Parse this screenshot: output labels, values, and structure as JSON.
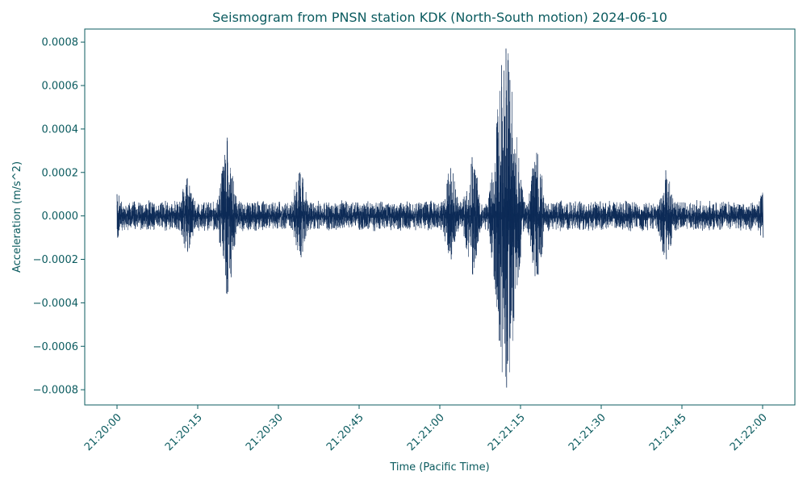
{
  "colors": {
    "axis": "#0b5b5f",
    "trace": "#0d2b57",
    "background": "#ffffff"
  },
  "chart_data": {
    "type": "line",
    "title": "Seismogram from PNSN station KDK (North-South motion) 2024-06-10",
    "xlabel": "Time (Pacific Time)",
    "ylabel": "Acceleration (m/s^2)",
    "x_range": [
      "21:20:00",
      "21:22:00"
    ],
    "xlim": [
      "21:19:54",
      "21:22:06"
    ],
    "ylim": [
      -0.00087,
      0.00086
    ],
    "x_ticks": [
      "21:20:00",
      "21:20:15",
      "21:20:30",
      "21:20:45",
      "21:21:00",
      "21:21:15",
      "21:21:30",
      "21:21:45",
      "21:22:00"
    ],
    "y_ticks": [
      {
        "value": 0.0008,
        "label": "0.0008"
      },
      {
        "value": 0.0006,
        "label": "0.0006"
      },
      {
        "value": 0.0004,
        "label": "0.0004"
      },
      {
        "value": 0.0002,
        "label": "0.0002"
      },
      {
        "value": 0.0,
        "label": "0.0000"
      },
      {
        "value": -0.0002,
        "label": "−0.0002"
      },
      {
        "value": -0.0004,
        "label": "−0.0004"
      },
      {
        "value": -0.0006,
        "label": "−0.0006"
      },
      {
        "value": -0.0008,
        "label": "−0.0008"
      }
    ],
    "grid": false,
    "envelope_peaks": [
      {
        "t": "21:20:00",
        "max": 0.0001,
        "min": -0.0001
      },
      {
        "t": "21:20:13",
        "max": 0.00017,
        "min": -0.00016
      },
      {
        "t": "21:20:20.5",
        "max": 0.00036,
        "min": -0.00035
      },
      {
        "t": "21:20:34",
        "max": 0.0002,
        "min": -0.00018
      },
      {
        "t": "21:21:02",
        "max": 0.00022,
        "min": -0.0002
      },
      {
        "t": "21:21:06",
        "max": 0.00027,
        "min": -0.00027
      },
      {
        "t": "21:21:12.3",
        "max": 0.00077,
        "min": -0.00079
      },
      {
        "t": "21:21:18",
        "max": 0.00029,
        "min": -0.00027
      },
      {
        "t": "21:21:42",
        "max": 0.00021,
        "min": -0.0002
      },
      {
        "t": "21:22:00",
        "max": 0.0001,
        "min": -0.0001
      }
    ]
  }
}
